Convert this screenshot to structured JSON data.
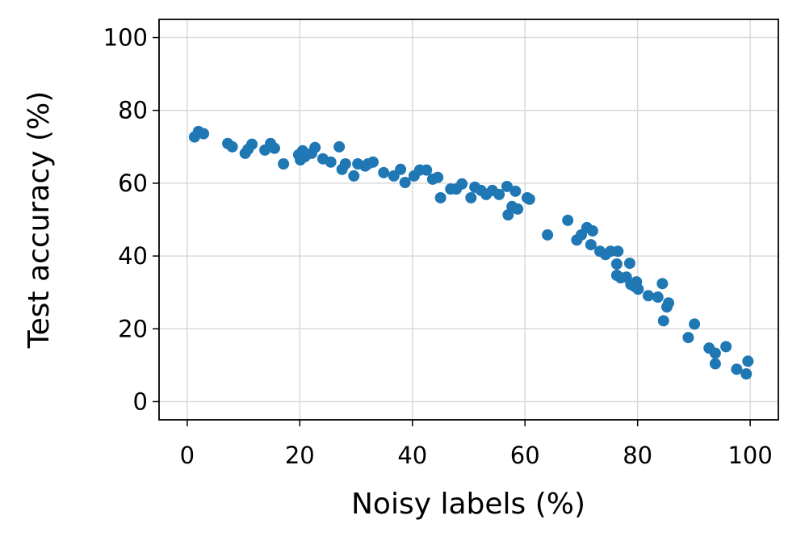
{
  "chart_data": {
    "type": "scatter",
    "xlabel": "Noisy labels (%)",
    "ylabel": "Test accuracy (%)",
    "color": "#1f77b4",
    "grid": true,
    "xlim": [
      -5,
      105
    ],
    "ylim": [
      -5,
      105
    ],
    "xticks": [
      0,
      20,
      40,
      60,
      80,
      100
    ],
    "yticks": [
      0,
      20,
      40,
      60,
      80,
      100
    ],
    "x": [
      1.3,
      2.0,
      2.9,
      7.2,
      8.0,
      10.3,
      10.8,
      11.5,
      13.8,
      14.8,
      15.5,
      17.1,
      19.8,
      20.1,
      20.5,
      20.9,
      22.1,
      22.7,
      24.1,
      25.5,
      27.0,
      27.5,
      28.1,
      29.6,
      30.3,
      31.6,
      32.1,
      33.0,
      34.9,
      36.7,
      37.9,
      38.7,
      40.3,
      41.3,
      42.5,
      43.6,
      44.5,
      45.0,
      46.8,
      47.8,
      48.8,
      50.4,
      51.1,
      52.2,
      53.1,
      54.2,
      55.4,
      56.8,
      57.0,
      57.7,
      58.3,
      58.7,
      60.4,
      60.8,
      64.0,
      67.6,
      69.2,
      70.0,
      71.0,
      72.0,
      71.7,
      73.3,
      74.3,
      75.2,
      76.5,
      76.3,
      76.3,
      77.0,
      78.0,
      78.6,
      78.8,
      79.5,
      79.8,
      80.1,
      81.9,
      83.6,
      84.4,
      84.6,
      85.2,
      85.5,
      89.0,
      90.1,
      92.7,
      93.8,
      93.8,
      95.7,
      97.6,
      99.3,
      99.6
    ],
    "values": [
      72.7,
      74.2,
      73.6,
      70.9,
      70.0,
      68.2,
      69.3,
      70.7,
      69.1,
      70.9,
      69.6,
      65.3,
      67.8,
      66.4,
      68.9,
      67.3,
      68.2,
      69.8,
      66.7,
      65.8,
      70.0,
      63.8,
      65.3,
      62.0,
      65.3,
      64.7,
      65.3,
      65.8,
      62.9,
      62.0,
      63.8,
      60.2,
      62.0,
      63.6,
      63.6,
      61.1,
      61.6,
      56.0,
      58.4,
      58.4,
      59.8,
      56.0,
      58.9,
      58.0,
      56.9,
      58.0,
      56.9,
      59.1,
      51.3,
      53.6,
      57.8,
      52.9,
      56.0,
      55.6,
      45.8,
      49.8,
      44.4,
      45.8,
      47.8,
      46.9,
      43.1,
      41.3,
      40.4,
      41.3,
      41.3,
      37.8,
      34.7,
      34.0,
      34.2,
      38.0,
      32.2,
      31.6,
      32.9,
      30.9,
      29.1,
      28.7,
      32.4,
      22.2,
      26.0,
      27.1,
      17.6,
      21.3,
      14.7,
      13.3,
      10.4,
      15.1,
      8.9,
      7.6,
      11.1
    ]
  }
}
